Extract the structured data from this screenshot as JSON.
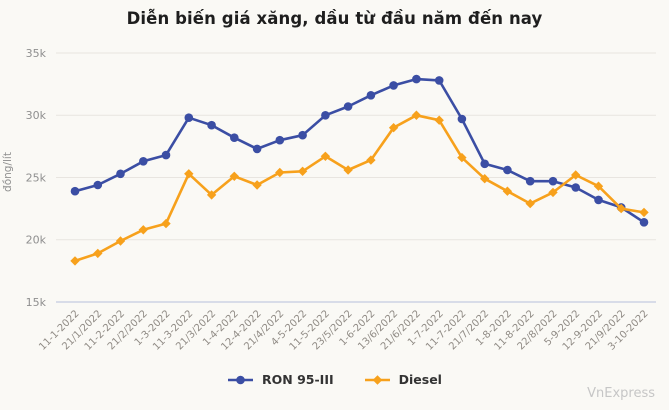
{
  "header": {
    "title": "Diễn biến giá xăng, dầu từ đầu năm đến nay"
  },
  "watermark": "VnExpress",
  "chart_data": {
    "type": "line",
    "title": "Diễn biến giá xăng, dầu từ đầu năm đến nay",
    "xlabel": "",
    "ylabel": "đồng/lít",
    "ylim": [
      15000,
      35000
    ],
    "grid": true,
    "legend_position": "bottom",
    "y_ticks": [
      {
        "value": 35000,
        "label": "35k"
      },
      {
        "value": 30000,
        "label": "30k"
      },
      {
        "value": 25000,
        "label": "25k"
      },
      {
        "value": 20000,
        "label": "20k"
      },
      {
        "value": 15000,
        "label": "15k"
      }
    ],
    "categories": [
      "11-1-2022",
      "21/1/2022",
      "11-2-2022",
      "21/2/2022",
      "1-3-2022",
      "11-3-2022",
      "21/3/2022",
      "1-4-2022",
      "12-4-2022",
      "21/4/2022",
      "4-5-2022",
      "11-5-2022",
      "23/5/2022",
      "1-6-2022",
      "13/6/2022",
      "21/6/2022",
      "1-7-2022",
      "11-7-2022",
      "21/7/2022",
      "1-8-2022",
      "11-8-2022",
      "22/8/2022",
      "5-9-2022",
      "12-9-2022",
      "21/9/2022",
      "3-10-2022"
    ],
    "series": [
      {
        "name": "RON 95-III",
        "color": "#3b4ea4",
        "marker": "circle",
        "values": [
          23900,
          24400,
          25300,
          26300,
          26800,
          29800,
          29200,
          28200,
          27300,
          28000,
          28400,
          30000,
          30700,
          31600,
          32400,
          32900,
          32800,
          29700,
          26100,
          25600,
          24700,
          24700,
          24200,
          23200,
          22600,
          21400
        ]
      },
      {
        "name": "Diesel",
        "color": "#f7a11c",
        "marker": "diamond",
        "values": [
          18300,
          18900,
          19900,
          20800,
          21300,
          25300,
          23600,
          25100,
          24400,
          25400,
          25500,
          26700,
          25600,
          26400,
          29000,
          30000,
          29600,
          26600,
          24900,
          23900,
          22900,
          23800,
          25200,
          24300,
          22500,
          22200
        ]
      }
    ],
    "colors": {
      "grid": "#e8e5e0",
      "axis": "#b7c0da",
      "background": "#faf9f5"
    }
  }
}
